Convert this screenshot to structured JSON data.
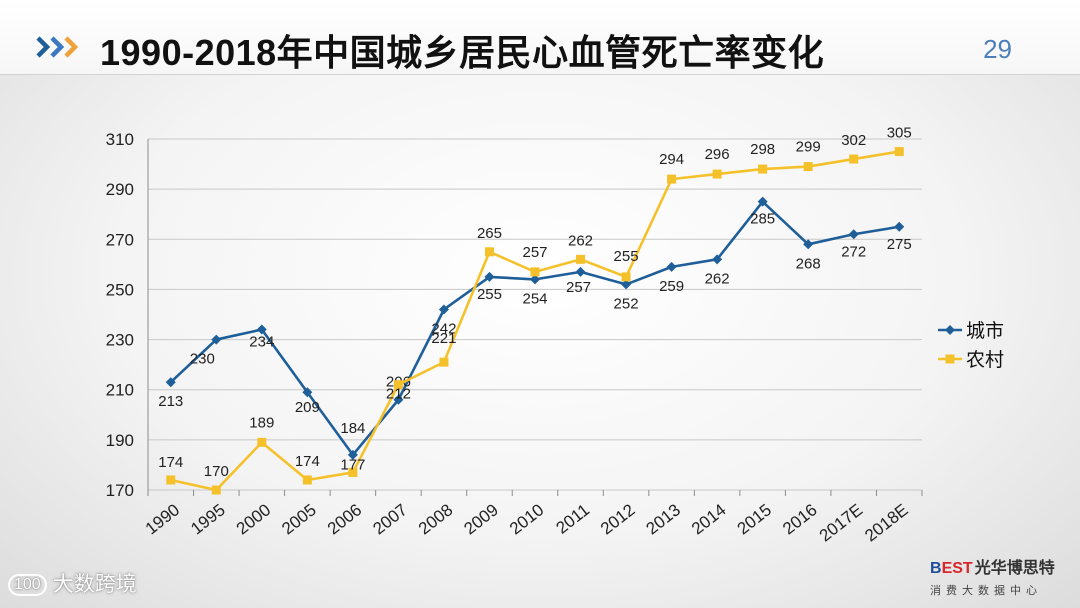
{
  "page": {
    "title": "1990-2018年中国城乡居民心血管死亡率变化",
    "page_number": "29"
  },
  "watermark": {
    "icon": "chat-bubble-icon",
    "logo_text": "100",
    "text": "大数跨境"
  },
  "brand": {
    "logo_b": "B",
    "logo_est": "EST",
    "name": "光华博思特",
    "subtitle": "消费大数据中心"
  },
  "colors": {
    "urban": "#1f5f99",
    "rural": "#f5c12b",
    "accent": "#3a78c2",
    "grid": "#c8c8c8"
  },
  "chart_data": {
    "type": "line",
    "categories": [
      "1990",
      "1995",
      "2000",
      "2005",
      "2006",
      "2007",
      "2008",
      "2009",
      "2010",
      "2011",
      "2012",
      "2013",
      "2014",
      "2015",
      "2016",
      "2017E",
      "2018E"
    ],
    "series": [
      {
        "name": "城市",
        "values": [
          213,
          230,
          234,
          209,
          184,
          206,
          242,
          255,
          254,
          257,
          252,
          259,
          262,
          285,
          268,
          272,
          275
        ],
        "color": "#1f5f99",
        "marker": "diamond"
      },
      {
        "name": "农村",
        "values": [
          174,
          170,
          189,
          174,
          177,
          212,
          221,
          265,
          257,
          262,
          255,
          294,
          296,
          298,
          299,
          302,
          305
        ],
        "color": "#f5c12b",
        "marker": "square"
      }
    ],
    "ylim": [
      170,
      310
    ],
    "yticks": [
      170,
      190,
      210,
      230,
      250,
      270,
      290,
      310
    ],
    "xlabel": "",
    "ylabel": "",
    "grid": true,
    "legend": "right"
  }
}
